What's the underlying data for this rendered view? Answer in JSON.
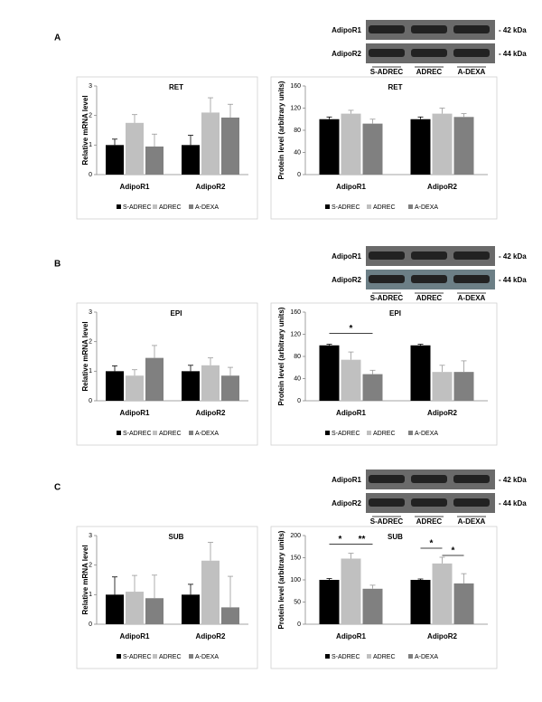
{
  "panels": [
    {
      "label": "A",
      "blot": {
        "rows": [
          "AdipoR1",
          "AdipoR2"
        ],
        "sizes": [
          "- 42 kDa",
          "- 44 kDa"
        ],
        "lanes": [
          "S-ADREC",
          "ADREC",
          "A-DEXA"
        ]
      }
    },
    {
      "label": "B",
      "blot": {
        "rows": [
          "AdipoR1",
          "AdipoR2"
        ],
        "sizes": [
          "- 42 kDa",
          "- 44 kDa"
        ],
        "lanes": [
          "S-ADREC",
          "ADREC",
          "A-DEXA"
        ]
      }
    },
    {
      "label": "C",
      "blot": {
        "rows": [
          "AdipoR1",
          "AdipoR2"
        ],
        "sizes": [
          "- 42 kDa",
          "- 44 kDa"
        ],
        "lanes": [
          "S-ADREC",
          "ADREC",
          "A-DEXA"
        ]
      }
    }
  ],
  "chart_data": [
    {
      "type": "bar",
      "title": "RET",
      "y_label": "Relative mRNA level",
      "categories": [
        "AdipoR1",
        "AdipoR2"
      ],
      "ylim": [
        0,
        3
      ],
      "yticks": [
        0,
        1,
        2,
        3
      ],
      "series": [
        {
          "name": "S-ADREC",
          "color": "#000000",
          "values": [
            1.0,
            1.0
          ],
          "errors": [
            0.2,
            0.33
          ]
        },
        {
          "name": "ADREC",
          "color": "#c0c0c0",
          "values": [
            1.75,
            2.1
          ],
          "errors": [
            0.28,
            0.5
          ]
        },
        {
          "name": "A-DEXA",
          "color": "#808080",
          "values": [
            0.95,
            1.93
          ],
          "errors": [
            0.42,
            0.45
          ]
        }
      ]
    },
    {
      "type": "bar",
      "title": "RET",
      "y_label": "Protein level (arbitrary units)",
      "categories": [
        "AdipoR1",
        "AdipoR2"
      ],
      "ylim": [
        0,
        160
      ],
      "yticks": [
        0,
        40,
        80,
        120,
        160
      ],
      "series": [
        {
          "name": "S-ADREC",
          "color": "#000000",
          "values": [
            100,
            100
          ],
          "errors": [
            4,
            4
          ]
        },
        {
          "name": "ADREC",
          "color": "#c0c0c0",
          "values": [
            110,
            110
          ],
          "errors": [
            6,
            10
          ]
        },
        {
          "name": "A-DEXA",
          "color": "#808080",
          "values": [
            92,
            104
          ],
          "errors": [
            8,
            6
          ]
        }
      ]
    },
    {
      "type": "bar",
      "title": "EPI",
      "y_label": "Relative mRNA level",
      "categories": [
        "AdipoR1",
        "AdipoR2"
      ],
      "ylim": [
        0,
        3
      ],
      "yticks": [
        0,
        1,
        2,
        3
      ],
      "series": [
        {
          "name": "S-ADREC",
          "color": "#000000",
          "values": [
            1.0,
            1.0
          ],
          "errors": [
            0.18,
            0.2
          ]
        },
        {
          "name": "ADREC",
          "color": "#c0c0c0",
          "values": [
            0.85,
            1.2
          ],
          "errors": [
            0.2,
            0.25
          ]
        },
        {
          "name": "A-DEXA",
          "color": "#808080",
          "values": [
            1.45,
            0.85
          ],
          "errors": [
            0.42,
            0.28
          ]
        }
      ]
    },
    {
      "type": "bar",
      "title": "EPI",
      "y_label": "Protein level (arbitrary units)",
      "categories": [
        "AdipoR1",
        "AdipoR2"
      ],
      "ylim": [
        0,
        160
      ],
      "yticks": [
        0,
        40,
        80,
        120,
        160
      ],
      "series": [
        {
          "name": "S-ADREC",
          "color": "#000000",
          "values": [
            100,
            100
          ],
          "errors": [
            2,
            2
          ]
        },
        {
          "name": "ADREC",
          "color": "#c0c0c0",
          "values": [
            74,
            52
          ],
          "errors": [
            14,
            12
          ]
        },
        {
          "name": "A-DEXA",
          "color": "#808080",
          "values": [
            48,
            52
          ],
          "errors": [
            7,
            20
          ]
        }
      ],
      "annotations": [
        {
          "text": "*"
        }
      ]
    },
    {
      "type": "bar",
      "title": "SUB",
      "y_label": "Relative mRNA level",
      "categories": [
        "AdipoR1",
        "AdipoR2"
      ],
      "ylim": [
        0,
        3
      ],
      "yticks": [
        0,
        1,
        2,
        3
      ],
      "series": [
        {
          "name": "S-ADREC",
          "color": "#000000",
          "values": [
            1.0,
            1.0
          ],
          "errors": [
            0.6,
            0.35
          ]
        },
        {
          "name": "ADREC",
          "color": "#c0c0c0",
          "values": [
            1.1,
            2.15
          ],
          "errors": [
            0.55,
            0.62
          ]
        },
        {
          "name": "A-DEXA",
          "color": "#808080",
          "values": [
            0.88,
            0.57
          ],
          "errors": [
            0.78,
            1.05
          ]
        }
      ]
    },
    {
      "type": "bar",
      "title": "SUB",
      "y_label": "Protein level (arbitrary units)",
      "categories": [
        "AdipoR1",
        "AdipoR2"
      ],
      "ylim": [
        0,
        200
      ],
      "yticks": [
        0,
        50,
        100,
        150,
        200
      ],
      "series": [
        {
          "name": "S-ADREC",
          "color": "#000000",
          "values": [
            100,
            100
          ],
          "errors": [
            3,
            2
          ]
        },
        {
          "name": "ADREC",
          "color": "#c0c0c0",
          "values": [
            148,
            137
          ],
          "errors": [
            12,
            14
          ]
        },
        {
          "name": "A-DEXA",
          "color": "#808080",
          "values": [
            80,
            92
          ],
          "errors": [
            8,
            22
          ]
        }
      ],
      "annotations": [
        {
          "text": "*"
        },
        {
          "text": "**"
        },
        {
          "text": "*"
        },
        {
          "text": "*"
        }
      ]
    }
  ]
}
